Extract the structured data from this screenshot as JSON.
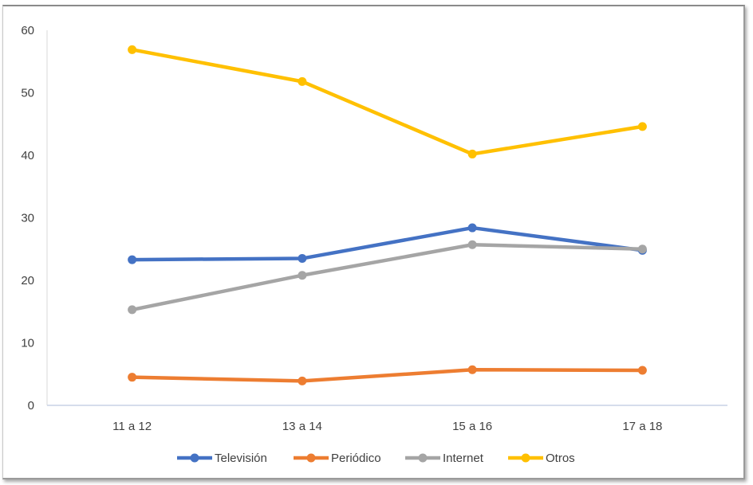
{
  "chart_data": {
    "type": "line",
    "title": "",
    "xlabel": "",
    "ylabel": "",
    "categories": [
      "11 a 12",
      "13 a 14",
      "15 a 16",
      "17 a 18"
    ],
    "ylim": [
      0,
      60
    ],
    "yticks": [
      0,
      10,
      20,
      30,
      40,
      50,
      60
    ],
    "grid": false,
    "legend_position": "bottom",
    "series": [
      {
        "name": "Televisión",
        "color": "#4472C4",
        "values": [
          23.3,
          23.5,
          28.4,
          24.8
        ]
      },
      {
        "name": "Periódico",
        "color": "#ED7D31",
        "values": [
          4.5,
          3.9,
          5.7,
          5.6
        ]
      },
      {
        "name": "Internet",
        "color": "#A5A5A5",
        "values": [
          15.3,
          20.8,
          25.7,
          25.0
        ]
      },
      {
        "name": "Otros",
        "color": "#FFC000",
        "values": [
          56.9,
          51.8,
          40.2,
          44.6
        ]
      }
    ]
  }
}
